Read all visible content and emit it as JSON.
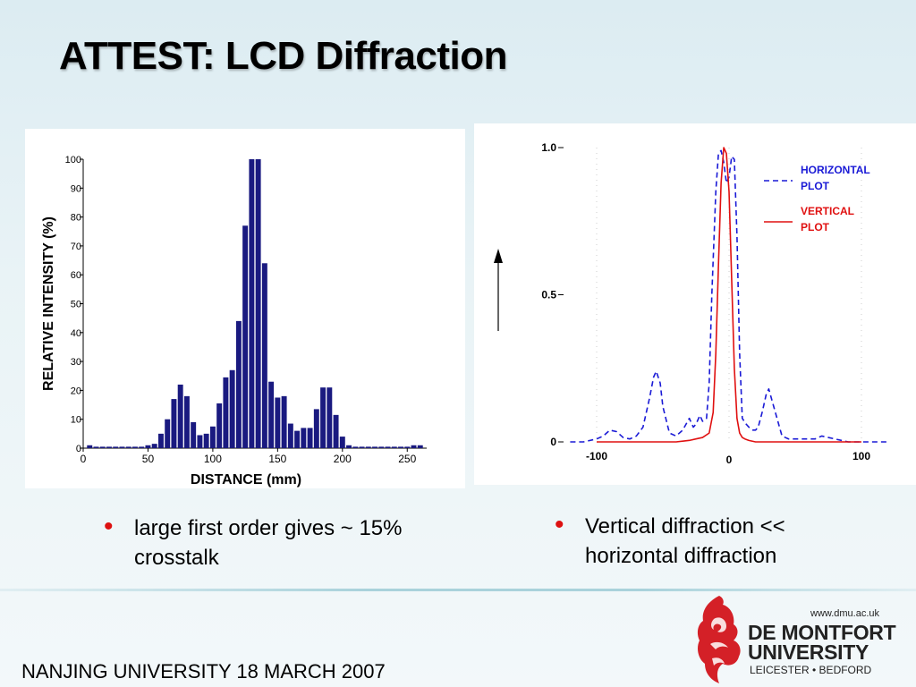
{
  "slide": {
    "title": "ATTEST: LCD Diffraction",
    "footer": "NANJING UNIVERSITY 18 MARCH 2007",
    "bullets": [
      "large first order gives  ~ 15% crosstalk",
      "Vertical diffraction << horizontal diffraction"
    ],
    "bullet_color": "#dd1111"
  },
  "logo": {
    "url": "www.dmu.ac.uk",
    "line1": "DE MONTFORT",
    "line2": "UNIVERSITY",
    "line3": "LEICESTER • BEDFORD",
    "icon": "dmu-lion-crest-icon",
    "color": "#d42027"
  },
  "chart_data": [
    {
      "type": "bar",
      "xlabel": "DISTANCE (mm)",
      "ylabel": "RELATIVE INTENSITY (%)",
      "xlim": [
        0,
        265
      ],
      "ylim": [
        0,
        100
      ],
      "xticks": [
        0,
        50,
        100,
        150,
        200,
        250
      ],
      "yticks": [
        0,
        10,
        20,
        30,
        40,
        50,
        60,
        70,
        80,
        90,
        100
      ],
      "bar_color": "#1a1a80",
      "x": [
        5,
        10,
        15,
        20,
        25,
        30,
        35,
        40,
        45,
        50,
        55,
        60,
        65,
        70,
        75,
        80,
        85,
        90,
        95,
        100,
        105,
        110,
        115,
        120,
        125,
        130,
        135,
        140,
        145,
        150,
        155,
        160,
        165,
        170,
        175,
        180,
        185,
        190,
        195,
        200,
        205,
        210,
        215,
        220,
        225,
        230,
        235,
        240,
        245,
        250,
        255,
        260
      ],
      "values": [
        1,
        0.5,
        0.5,
        0.5,
        0.5,
        0.5,
        0.5,
        0.5,
        0.5,
        1,
        1.5,
        5,
        10,
        17,
        22,
        18,
        9,
        4.5,
        5,
        7.5,
        15.5,
        24.5,
        27,
        44,
        77,
        100,
        100,
        64,
        23,
        17.5,
        18,
        8.5,
        6,
        7,
        7,
        13.5,
        21,
        21,
        11.5,
        4,
        1,
        0.5,
        0.5,
        0.5,
        0.5,
        0.5,
        0.5,
        0.5,
        0.5,
        0.5,
        1,
        1
      ]
    },
    {
      "type": "line",
      "xlabel": "",
      "ylabel": "",
      "xlim": [
        -125,
        125
      ],
      "ylim": [
        0,
        1.0
      ],
      "xticks": [
        "-100",
        "0",
        "100"
      ],
      "yticks": [
        "0",
        "0.5",
        "1.0"
      ],
      "legend": "top-right",
      "series": [
        {
          "name": "HORIZONTAL PLOT",
          "color": "#1a1ad6",
          "style": "dashed",
          "x": [
            -120,
            -110,
            -100,
            -95,
            -90,
            -85,
            -80,
            -75,
            -70,
            -65,
            -60,
            -57,
            -55,
            -52,
            -50,
            -45,
            -40,
            -35,
            -30,
            -27,
            -25,
            -22,
            -20,
            -17,
            -15,
            -13,
            -10,
            -8,
            -6,
            -4,
            -2,
            0,
            2,
            4,
            6,
            8,
            10,
            13,
            15,
            18,
            20,
            22,
            25,
            28,
            30,
            35,
            40,
            45,
            50,
            55,
            60,
            65,
            70,
            80,
            90,
            100,
            110,
            120
          ],
          "values": [
            0,
            0,
            0.01,
            0.02,
            0.04,
            0.035,
            0.015,
            0.01,
            0.02,
            0.05,
            0.15,
            0.22,
            0.24,
            0.2,
            0.12,
            0.03,
            0.02,
            0.04,
            0.08,
            0.05,
            0.06,
            0.09,
            0.07,
            0.08,
            0.2,
            0.5,
            0.85,
            0.98,
            0.99,
            0.95,
            0.88,
            0.9,
            0.97,
            0.96,
            0.7,
            0.3,
            0.08,
            0.06,
            0.05,
            0.04,
            0.04,
            0.05,
            0.1,
            0.16,
            0.18,
            0.1,
            0.02,
            0.01,
            0.01,
            0.01,
            0.01,
            0.01,
            0.02,
            0.01,
            0,
            0,
            0,
            0
          ]
        },
        {
          "name": "VERTICAL PLOT",
          "color": "#e01010",
          "style": "solid",
          "x": [
            -100,
            -60,
            -40,
            -30,
            -25,
            -20,
            -15,
            -12,
            -10,
            -8,
            -6,
            -4,
            -2,
            0,
            2,
            4,
            6,
            8,
            10,
            12,
            15,
            20,
            25,
            30,
            40,
            60,
            100
          ],
          "values": [
            0,
            0,
            0,
            0.005,
            0.01,
            0.015,
            0.03,
            0.1,
            0.3,
            0.6,
            0.88,
            1.0,
            0.98,
            0.85,
            0.55,
            0.25,
            0.08,
            0.03,
            0.015,
            0.01,
            0.005,
            0,
            0,
            0,
            0,
            0,
            0
          ]
        }
      ]
    }
  ]
}
